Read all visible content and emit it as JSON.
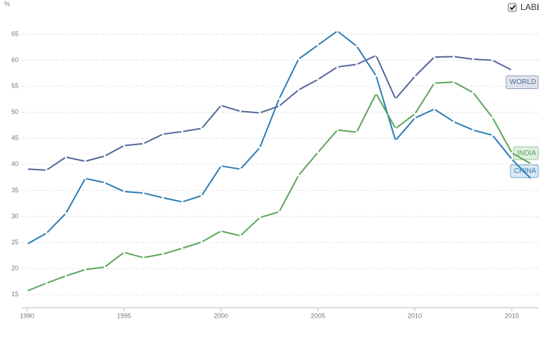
{
  "chart_data": {
    "type": "line",
    "y_unit": "%",
    "toggle_label": "LABE",
    "x": [
      1990,
      1991,
      1992,
      1993,
      1994,
      1995,
      1996,
      1997,
      1998,
      1999,
      2000,
      2001,
      2002,
      2003,
      2004,
      2005,
      2006,
      2007,
      2008,
      2009,
      2010,
      2011,
      2012,
      2013,
      2014,
      2015,
      2016
    ],
    "xlim": [
      1990,
      2016.4
    ],
    "xticks": [
      1990,
      1995,
      2000,
      2005,
      2010,
      2015
    ],
    "ylim": [
      12.5,
      67.5
    ],
    "yticks": [
      15,
      20,
      25,
      30,
      35,
      40,
      45,
      50,
      55,
      60,
      65
    ],
    "grid": true,
    "series": [
      {
        "name": "WORLD",
        "color": "#55679b",
        "values": [
          39.1,
          38.9,
          41.4,
          40.6,
          41.6,
          43.6,
          44.0,
          45.8,
          46.3,
          46.9,
          51.3,
          50.2,
          49.9,
          51.2,
          54.3,
          56.3,
          58.7,
          59.2,
          60.9,
          52.6,
          56.9,
          60.6,
          60.7,
          60.2,
          60.0,
          58.1,
          null
        ]
      },
      {
        "name": "CHINA",
        "color": "#2d7db5",
        "values": [
          24.7,
          26.8,
          30.6,
          37.3,
          36.5,
          34.8,
          34.5,
          33.6,
          32.8,
          34.0,
          39.7,
          39.1,
          43.2,
          52.6,
          60.2,
          62.9,
          65.6,
          62.7,
          57.0,
          44.6,
          48.9,
          50.6,
          48.2,
          46.6,
          45.6,
          41.0,
          37.2
        ]
      },
      {
        "name": "INDIA",
        "color": "#5ba55b",
        "values": [
          15.7,
          17.2,
          18.6,
          19.8,
          20.3,
          23.1,
          22.1,
          22.8,
          23.9,
          25.1,
          27.2,
          26.3,
          29.8,
          30.9,
          37.9,
          42.3,
          46.6,
          46.2,
          53.6,
          46.9,
          49.7,
          55.6,
          55.8,
          53.8,
          49.0,
          42.2,
          40.1
        ]
      }
    ]
  }
}
